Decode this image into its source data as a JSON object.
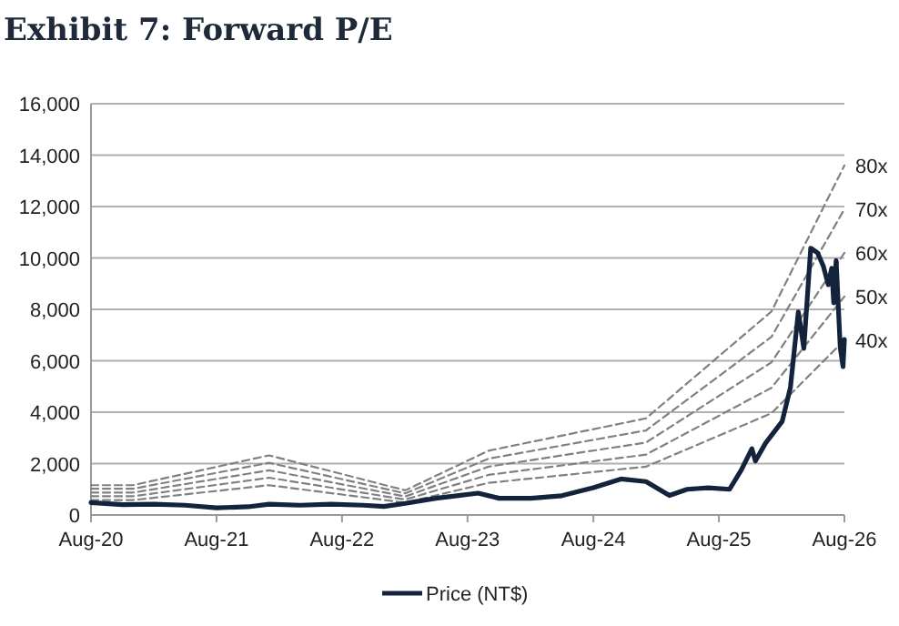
{
  "chart_data": {
    "type": "line",
    "title": "Exhibit 7: Forward P/E",
    "xlim": [
      "2020-08",
      "2026-08"
    ],
    "xticks": [
      {
        "value": "2020-08",
        "label": "Aug-20"
      },
      {
        "value": "2021-08",
        "label": "Aug-21"
      },
      {
        "value": "2022-08",
        "label": "Aug-22"
      },
      {
        "value": "2023-08",
        "label": "Aug-23"
      },
      {
        "value": "2024-08",
        "label": "Aug-24"
      },
      {
        "value": "2025-08",
        "label": "Aug-25"
      },
      {
        "value": "2026-08",
        "label": "Aug-26"
      }
    ],
    "ylim": [
      0,
      16000
    ],
    "yticks": [
      {
        "value": 0,
        "label": "0"
      },
      {
        "value": 2000,
        "label": "2,000"
      },
      {
        "value": 4000,
        "label": "4,000"
      },
      {
        "value": 6000,
        "label": "6,000"
      },
      {
        "value": 8000,
        "label": "8,000"
      },
      {
        "value": 10000,
        "label": "10,000"
      },
      {
        "value": 12000,
        "label": "12,000"
      },
      {
        "value": 14000,
        "label": "14,000"
      },
      {
        "value": 16000,
        "label": "16,000"
      }
    ],
    "grid": "y",
    "legend": "bottom",
    "series": [
      {
        "name": "80x",
        "color": "#808080",
        "line_style": "dashed",
        "x": [
          "2020-08",
          "2020-12",
          "2022-01",
          "2023-02",
          "2023-10",
          "2025-01",
          "2026-01",
          "2026-08"
        ],
        "values": [
          1160,
          1160,
          2320,
          960,
          2500,
          3760,
          7920,
          13600
        ]
      },
      {
        "name": "70x",
        "color": "#808080",
        "line_style": "dashed",
        "x": [
          "2020-08",
          "2020-12",
          "2022-01",
          "2023-02",
          "2023-10",
          "2025-01",
          "2026-01",
          "2026-08"
        ],
        "values": [
          1020,
          1020,
          2030,
          840,
          2190,
          3290,
          6930,
          11900
        ]
      },
      {
        "name": "60x",
        "color": "#808080",
        "line_style": "dashed",
        "x": [
          "2020-08",
          "2020-12",
          "2022-01",
          "2023-02",
          "2023-10",
          "2025-01",
          "2026-01",
          "2026-08"
        ],
        "values": [
          870,
          870,
          1740,
          720,
          1880,
          2820,
          5940,
          10200
        ]
      },
      {
        "name": "50x",
        "color": "#808080",
        "line_style": "dashed",
        "x": [
          "2020-08",
          "2020-12",
          "2022-01",
          "2023-02",
          "2023-10",
          "2025-01",
          "2026-01",
          "2026-08"
        ],
        "values": [
          730,
          730,
          1450,
          600,
          1560,
          2350,
          4950,
          8500
        ]
      },
      {
        "name": "40x",
        "color": "#808080",
        "line_style": "dashed",
        "x": [
          "2020-08",
          "2020-12",
          "2022-01",
          "2023-02",
          "2023-10",
          "2025-01",
          "2026-01",
          "2026-08"
        ],
        "values": [
          580,
          580,
          1160,
          480,
          1250,
          1880,
          3960,
          6800
        ]
      },
      {
        "name": "Price (NT$)",
        "color": "#14233c",
        "line_style": "solid",
        "x": [
          "2020-08",
          "2020-11",
          "2021-02",
          "2021-05",
          "2021-08",
          "2021-11",
          "2022-01",
          "2022-04",
          "2022-07",
          "2022-10",
          "2022-12",
          "2023-02",
          "2023-05",
          "2023-07",
          "2023-09",
          "2023-11",
          "2024-02",
          "2024-05",
          "2024-08",
          "2024-10-20",
          "2025-01",
          "2025-03-10",
          "2025-05",
          "2025-07",
          "2025-09",
          "2025-10-05",
          "2025-11-05",
          "2025-11-15",
          "2025-12-15",
          "2026-02-01",
          "2026-02-25",
          "2026-03-20",
          "2026-04-05",
          "2026-04-25",
          "2026-05-15",
          "2026-06-01",
          "2026-06-15",
          "2026-06-25",
          "2026-07-01",
          "2026-07-08",
          "2026-07-20",
          "2026-07-28",
          "2026-08-01"
        ],
        "values": [
          480,
          400,
          420,
          380,
          280,
          320,
          420,
          380,
          420,
          380,
          330,
          450,
          650,
          750,
          850,
          650,
          650,
          750,
          1060,
          1400,
          1300,
          760,
          1000,
          1060,
          1000,
          1750,
          2580,
          2100,
          2800,
          3640,
          4960,
          7900,
          6480,
          10380,
          10200,
          9670,
          8960,
          9600,
          8250,
          9900,
          6500,
          5770,
          6830
        ]
      }
    ]
  }
}
